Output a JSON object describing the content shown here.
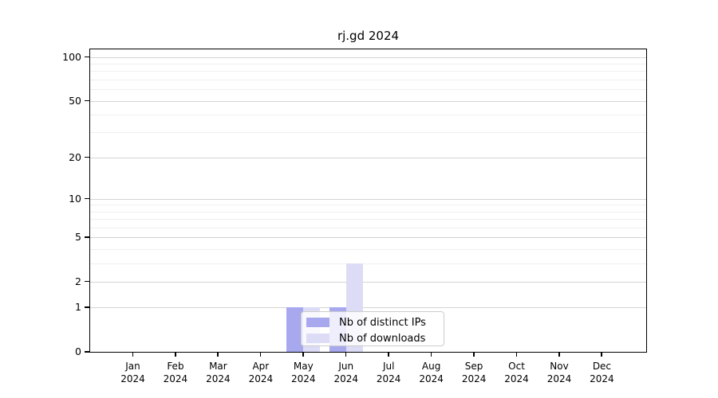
{
  "title": "rj.gd 2024",
  "chart_data": {
    "type": "bar",
    "title": "rj.gd 2024",
    "categories": [
      "Jan",
      "Feb",
      "Mar",
      "Apr",
      "May",
      "Jun",
      "Jul",
      "Aug",
      "Sep",
      "Oct",
      "Nov",
      "Dec"
    ],
    "x_tick_second_line": "2024",
    "series": [
      {
        "name": "Nb of distinct IPs",
        "color": "#a8a8ee",
        "values": [
          0,
          0,
          0,
          0,
          1,
          1,
          0,
          0,
          0,
          0,
          0,
          0
        ]
      },
      {
        "name": "Nb of downloads",
        "color": "#dcdcf6",
        "values": [
          0,
          0,
          0,
          0,
          1,
          3,
          0,
          0,
          0,
          0,
          0,
          0
        ]
      }
    ],
    "y_axis": {
      "scale": "log10(value+1)",
      "ticks": [
        0,
        1,
        2,
        5,
        10,
        20,
        50,
        100
      ],
      "minor_gridlines": [
        3,
        4,
        6,
        7,
        8,
        9,
        30,
        40,
        60,
        70,
        80,
        90
      ],
      "top_value": 113
    },
    "x_axis": {
      "label": "",
      "tick_count": 12
    },
    "grid": true,
    "legend": {
      "location": "inside-bottom-center",
      "entries": [
        {
          "label": "Nb of distinct IPs",
          "color": "#a8a8ee"
        },
        {
          "label": "Nb of downloads",
          "color": "#dcdcf6"
        }
      ]
    },
    "colors": {
      "major_grid": "#d4d4d4",
      "minor_grid": "#efefef",
      "spine": "#000000",
      "background": "#ffffff"
    }
  }
}
